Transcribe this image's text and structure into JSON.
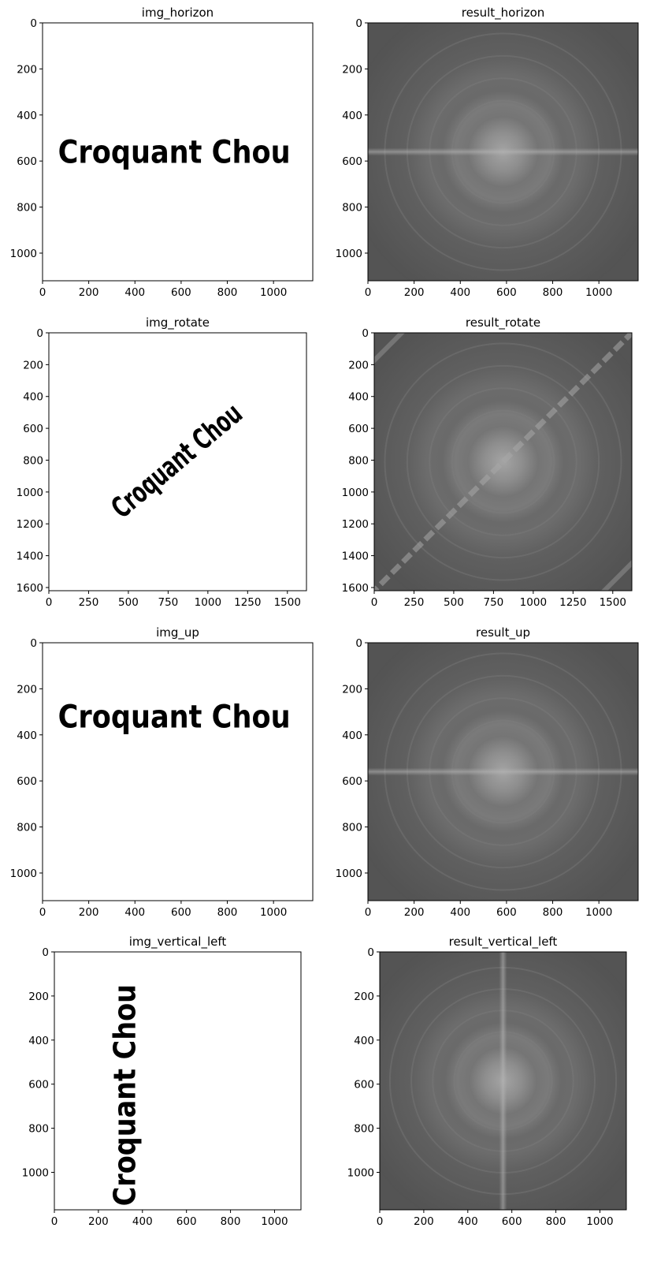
{
  "panels": [
    {
      "id": "img_horizon",
      "kind": "image",
      "title": "img_horizon",
      "text": "Croquant Chou",
      "text_angle": 0,
      "text_center": [
        570,
        570
      ],
      "text_height": 145,
      "width": 1170,
      "height": 1120,
      "xticks": [
        0,
        200,
        400,
        600,
        800,
        1000
      ],
      "yticks": [
        0,
        200,
        400,
        600,
        800,
        1000
      ]
    },
    {
      "id": "result_horizon",
      "kind": "spectrum",
      "title": "result_horizon",
      "streak": "horizontal",
      "center": [
        585,
        560
      ],
      "width": 1170,
      "height": 1120,
      "xticks": [
        0,
        200,
        400,
        600,
        800,
        1000
      ],
      "yticks": [
        0,
        200,
        400,
        600,
        800,
        1000
      ]
    },
    {
      "id": "img_rotate",
      "kind": "image",
      "title": "img_rotate",
      "text": "Croquant Chou",
      "text_angle": -40,
      "text_center": [
        810,
        810
      ],
      "text_height": 190,
      "width": 1620,
      "height": 1620,
      "xticks": [
        0,
        250,
        500,
        750,
        1000,
        1250,
        1500
      ],
      "yticks": [
        0,
        200,
        400,
        600,
        800,
        1000,
        1200,
        1400,
        1600
      ]
    },
    {
      "id": "result_rotate",
      "kind": "spectrum",
      "title": "result_rotate",
      "streak": "diagonal",
      "center": [
        810,
        810
      ],
      "width": 1620,
      "height": 1620,
      "xticks": [
        0,
        250,
        500,
        750,
        1000,
        1250,
        1500
      ],
      "yticks": [
        0,
        200,
        400,
        600,
        800,
        1000,
        1200,
        1400,
        1600
      ]
    },
    {
      "id": "img_up",
      "kind": "image",
      "title": "img_up",
      "text": "Croquant Chou",
      "text_angle": 0,
      "text_center": [
        570,
        330
      ],
      "text_height": 145,
      "width": 1170,
      "height": 1120,
      "xticks": [
        0,
        200,
        400,
        600,
        800,
        1000
      ],
      "yticks": [
        0,
        200,
        400,
        600,
        800,
        1000
      ]
    },
    {
      "id": "result_up",
      "kind": "spectrum",
      "title": "result_up",
      "streak": "horizontal",
      "center": [
        585,
        560
      ],
      "width": 1170,
      "height": 1120,
      "xticks": [
        0,
        200,
        400,
        600,
        800,
        1000
      ],
      "yticks": [
        0,
        200,
        400,
        600,
        800,
        1000
      ]
    },
    {
      "id": "img_vertical_left",
      "kind": "image",
      "title": "img_vertical_left",
      "text": "Croquant Chou",
      "text_angle": -90,
      "text_center": [
        330,
        650
      ],
      "text_height": 145,
      "width": 1120,
      "height": 1170,
      "xticks": [
        0,
        200,
        400,
        600,
        800,
        1000
      ],
      "yticks": [
        0,
        200,
        400,
        600,
        800,
        1000
      ]
    },
    {
      "id": "result_vertical_left",
      "kind": "spectrum",
      "title": "result_vertical_left",
      "streak": "vertical",
      "center": [
        560,
        585
      ],
      "width": 1120,
      "height": 1170,
      "xticks": [
        0,
        200,
        400,
        600,
        800,
        1000
      ],
      "yticks": [
        0,
        200,
        400,
        600,
        800,
        1000
      ]
    }
  ],
  "colors": {
    "spectrum_bg": "#545454",
    "spectrum_glow": "#9a9a9a",
    "frame": "#000000",
    "image_bg": "#ffffff"
  }
}
